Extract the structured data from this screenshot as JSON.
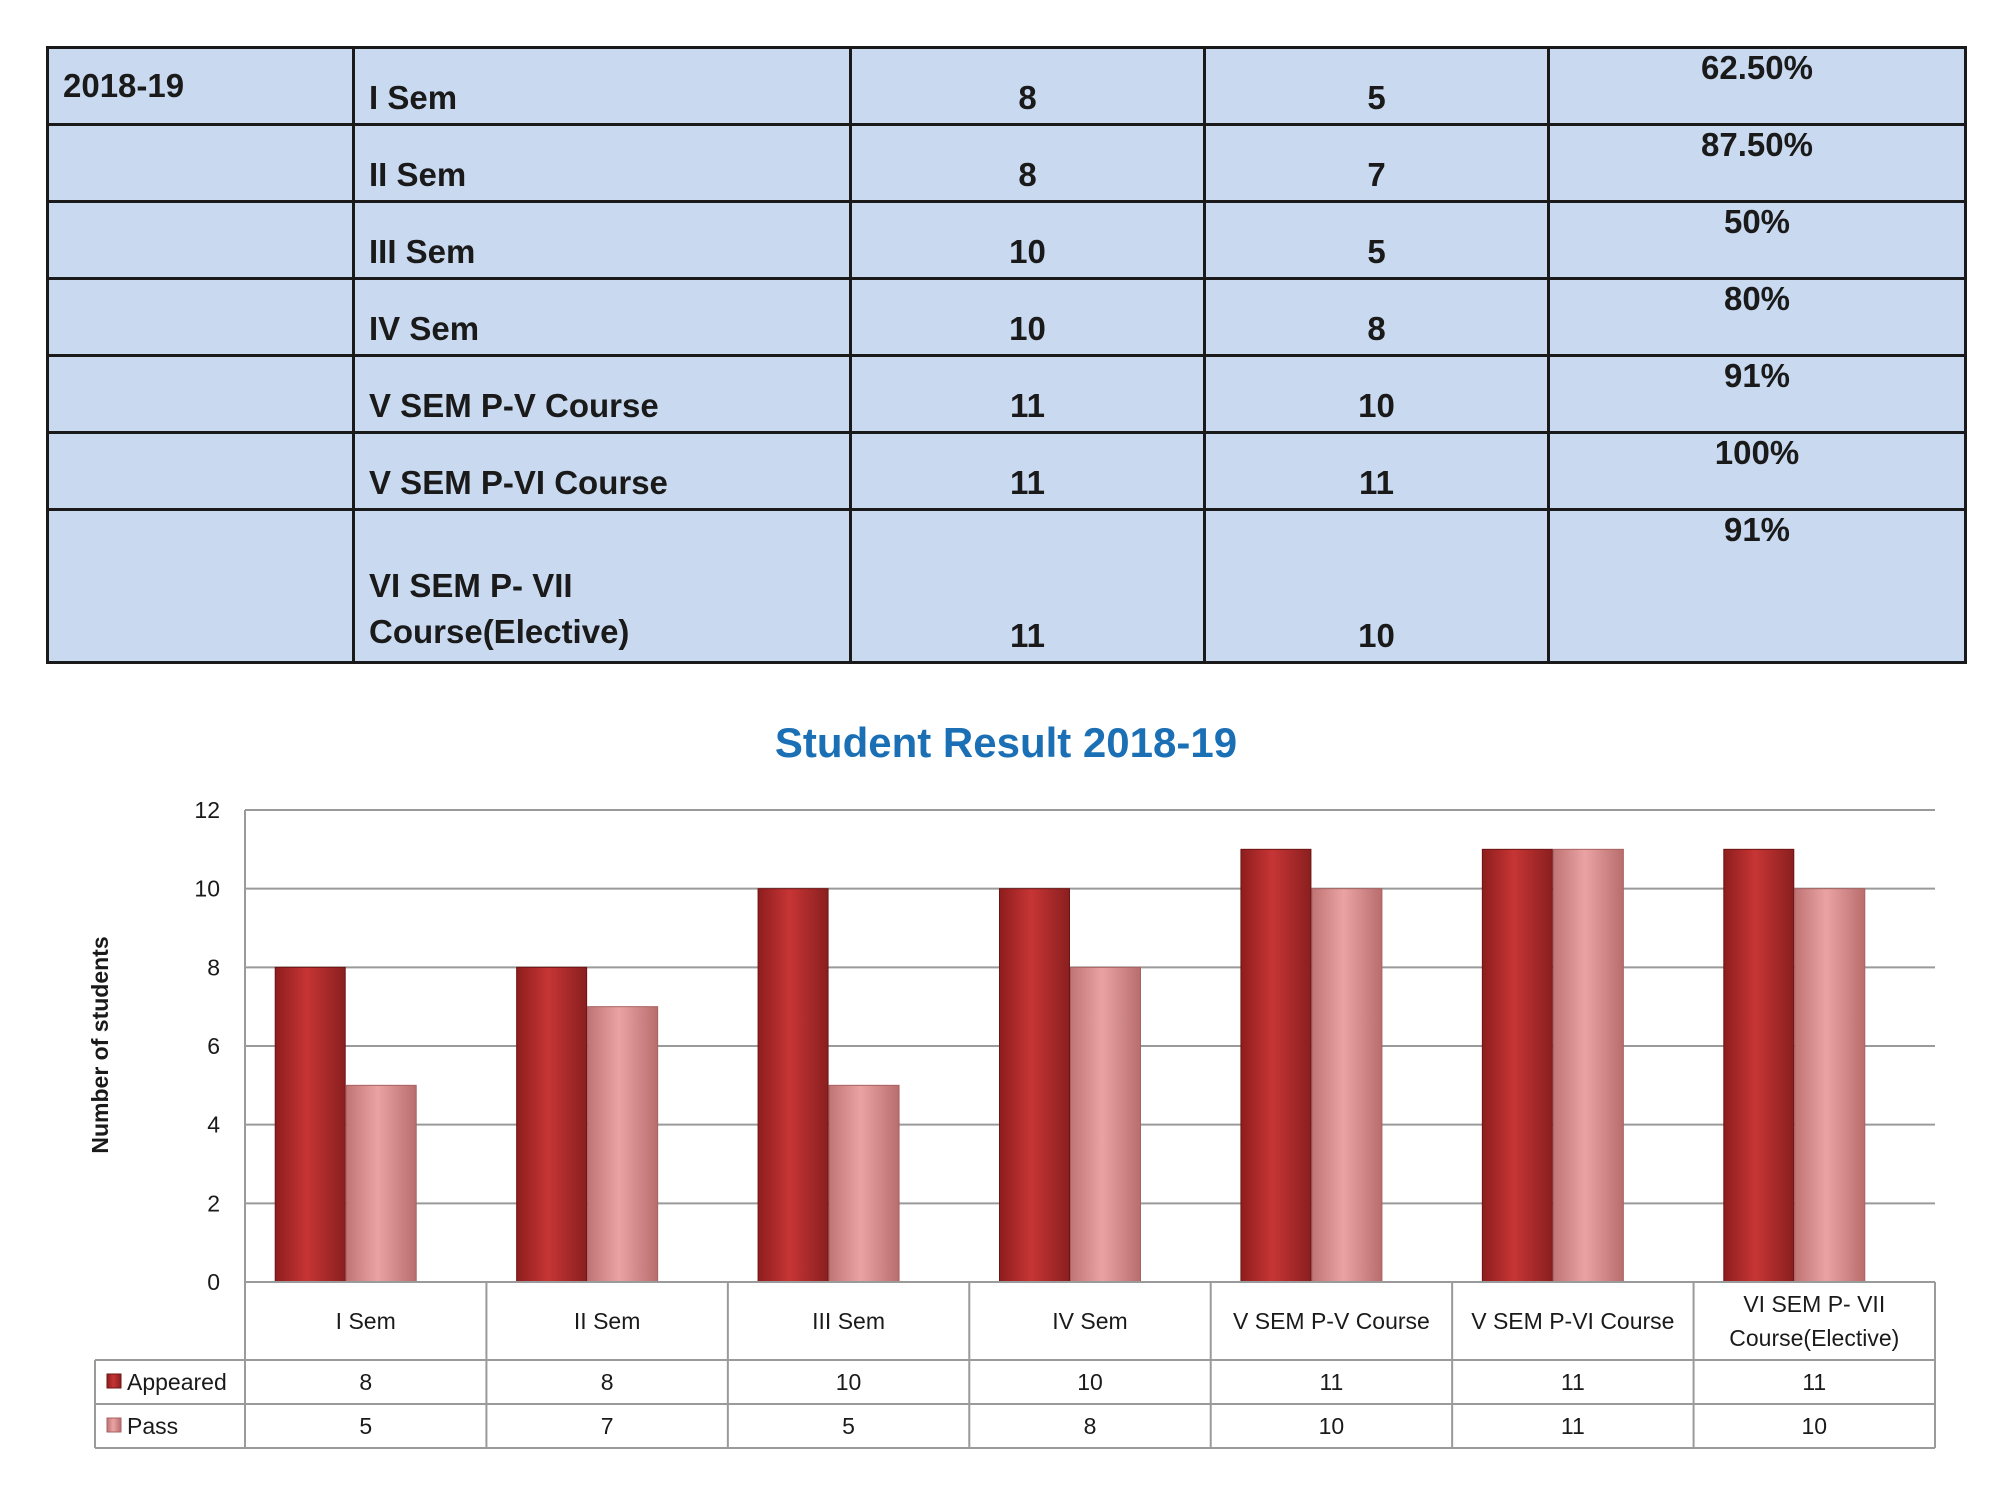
{
  "table": {
    "rows": [
      {
        "year": "2018-19",
        "semester": "I Sem",
        "appeared": "8",
        "pass": "5",
        "percent": "62.50%"
      },
      {
        "year": "",
        "semester": "II Sem",
        "appeared": "8",
        "pass": "7",
        "percent": "87.50%"
      },
      {
        "year": "",
        "semester": "III Sem",
        "appeared": "10",
        "pass": "5",
        "percent": "50%"
      },
      {
        "year": "",
        "semester": "IV Sem",
        "appeared": "10",
        "pass": "8",
        "percent": "80%"
      },
      {
        "year": "",
        "semester": "V SEM P-V Course",
        "appeared": "11",
        "pass": "10",
        "percent": "91%"
      },
      {
        "year": "",
        "semester": "V SEM P-VI Course",
        "appeared": "11",
        "pass": "11",
        "percent": "100%"
      },
      {
        "year": "",
        "semester": "VI SEM P- VII Course(Elective)",
        "appeared": "11",
        "pass": "10",
        "percent": "91%"
      }
    ]
  },
  "chart_data": {
    "type": "bar",
    "title": "Student Result 2018-19",
    "xlabel": "",
    "ylabel": "Number of students",
    "categories": [
      "I Sem",
      "II Sem",
      "III Sem",
      "IV Sem",
      "V SEM P-V Course",
      "V SEM P-VI Course",
      "VI SEM P- VII Course(Elective)"
    ],
    "category_lines": [
      [
        "I Sem"
      ],
      [
        "II Sem"
      ],
      [
        "III Sem"
      ],
      [
        "IV Sem"
      ],
      [
        "V SEM P-V Course"
      ],
      [
        "V SEM P-VI Course"
      ],
      [
        "VI SEM P- VII",
        "Course(Elective)"
      ]
    ],
    "series": [
      {
        "name": "Appeared",
        "values": [
          8,
          8,
          10,
          10,
          11,
          11,
          11
        ],
        "color": "#b82a2a"
      },
      {
        "name": "Pass",
        "values": [
          5,
          7,
          5,
          8,
          10,
          11,
          10
        ],
        "color": "#e29a9a"
      }
    ],
    "ylim": [
      0,
      12
    ],
    "yticks": [
      0,
      2,
      4,
      6,
      8,
      10,
      12
    ],
    "grid": true,
    "legend": "data-table-below",
    "title_color": "#1a6fb5"
  }
}
